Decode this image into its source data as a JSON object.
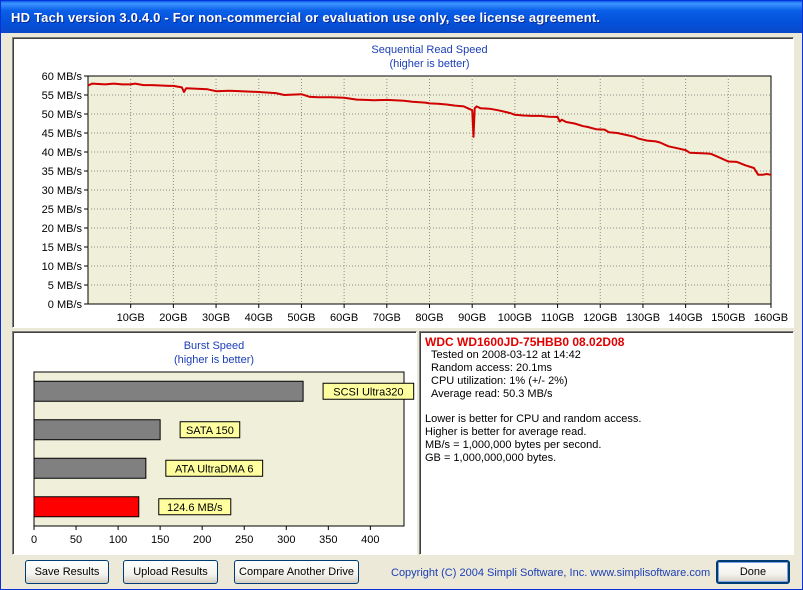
{
  "window": {
    "title": "HD Tach version 3.0.4.0  - For non-commercial or evaluation use only, see license agreement."
  },
  "colors": {
    "series_line": "#D00000",
    "plot_bg": "#F0EFDA",
    "bar_gray": "#808080",
    "bar_red": "#FF0000",
    "label_yellow": "#FFFFA0",
    "heading_blue": "#1C3FB6"
  },
  "chart_data": [
    {
      "type": "line",
      "title": "Sequential Read Speed",
      "subtitle": "(higher is better)",
      "xlim": [
        0,
        160
      ],
      "ylim": [
        0,
        60
      ],
      "x_ticks": [
        10,
        20,
        30,
        40,
        50,
        60,
        70,
        80,
        90,
        100,
        110,
        120,
        130,
        140,
        150,
        160
      ],
      "x_tick_labels": [
        "10GB",
        "20GB",
        "30GB",
        "40GB",
        "50GB",
        "60GB",
        "70GB",
        "80GB",
        "90GB",
        "100GB",
        "110GB",
        "120GB",
        "130GB",
        "140GB",
        "150GB",
        "160GB"
      ],
      "y_ticks": [
        0,
        5,
        10,
        15,
        20,
        25,
        30,
        35,
        40,
        45,
        50,
        55,
        60
      ],
      "y_tick_labels": [
        "0 MB/s",
        "5 MB/s",
        "10 MB/s",
        "15 MB/s",
        "20 MB/s",
        "25 MB/s",
        "30 MB/s",
        "35 MB/s",
        "40 MB/s",
        "45 MB/s",
        "50 MB/s",
        "55 MB/s",
        "60 MB/s"
      ],
      "grid": true,
      "series": [
        {
          "x": [
            0,
            1,
            4,
            6,
            8,
            10,
            11,
            13,
            15,
            17,
            19,
            20,
            21,
            22,
            22.5,
            23,
            28,
            30,
            33,
            36,
            40,
            44,
            46,
            50,
            52,
            54,
            57,
            60,
            63,
            65,
            67,
            70,
            74,
            76,
            79,
            80,
            82,
            84,
            86,
            88,
            89,
            90,
            90.3,
            90.6,
            91,
            92,
            94,
            96,
            98,
            99,
            100,
            102,
            104,
            106,
            108,
            110,
            110.5,
            111,
            112,
            114,
            116,
            117,
            119,
            121,
            122,
            124,
            126,
            128,
            129,
            131,
            133,
            134,
            136,
            138,
            140,
            141,
            143,
            145,
            146,
            148,
            150,
            152,
            154,
            156,
            157,
            158,
            159,
            160
          ],
          "y": [
            57.5,
            58.0,
            57.8,
            58.0,
            57.8,
            57.8,
            58.0,
            57.6,
            57.6,
            57.5,
            57.4,
            57.4,
            57.2,
            57.0,
            55.8,
            56.8,
            56.5,
            56.0,
            56.1,
            56.0,
            55.8,
            55.5,
            55.0,
            55.2,
            54.5,
            54.4,
            54.4,
            54.3,
            53.8,
            53.7,
            53.6,
            53.7,
            53.5,
            53.2,
            53.0,
            52.8,
            52.7,
            52.5,
            52.2,
            52.0,
            51.5,
            51.0,
            44.0,
            51.5,
            52.0,
            51.5,
            51.4,
            51.0,
            50.5,
            50.2,
            49.8,
            49.6,
            49.5,
            49.5,
            49.3,
            49.2,
            48.0,
            48.5,
            47.9,
            47.5,
            46.8,
            46.6,
            46.0,
            45.9,
            45.2,
            45.0,
            44.5,
            44.0,
            43.5,
            43.0,
            42.8,
            42.5,
            41.5,
            41.0,
            40.5,
            39.8,
            39.7,
            39.6,
            39.5,
            38.5,
            37.5,
            37.4,
            36.5,
            35.8,
            34.0,
            34.0,
            34.2,
            34.0
          ]
        }
      ]
    },
    {
      "type": "bar",
      "orientation": "horizontal",
      "title": "Burst Speed",
      "subtitle": "(higher is better)",
      "xlim": [
        0,
        440
      ],
      "x_ticks": [
        0,
        50,
        100,
        150,
        200,
        250,
        300,
        350,
        400
      ],
      "x_tick_labels": [
        "0",
        "50",
        "100",
        "150",
        "200",
        "250",
        "300",
        "350",
        "400"
      ],
      "categories": [
        "SCSI Ultra320",
        "SATA 150",
        "ATA UltraDMA 6",
        "124.6 MB/s"
      ],
      "values": [
        320,
        150,
        133,
        124.6
      ],
      "bar_colors": [
        "#808080",
        "#808080",
        "#808080",
        "#FF0000"
      ]
    }
  ],
  "info": {
    "drive": "WDC WD1600JD-75HBB0 08.02D08",
    "tested_on": "Tested on 2008-03-12 at 14:42",
    "random_access": "Random access: 20.1ms",
    "cpu_utilization": "CPU utilization: 1% (+/- 2%)",
    "average_read": "Average read: 50.3 MB/s",
    "notes": [
      "Lower is better for CPU and random access.",
      "Higher is better for average read.",
      "MB/s = 1,000,000 bytes per second.",
      "GB = 1,000,000,000 bytes."
    ]
  },
  "buttons": {
    "save": "Save Results",
    "upload": "Upload Results",
    "compare": "Compare Another Drive",
    "done": "Done"
  },
  "footer": {
    "copyright": "Copyright (C) 2004 Simpli Software, Inc. www.simplisoftware.com"
  }
}
